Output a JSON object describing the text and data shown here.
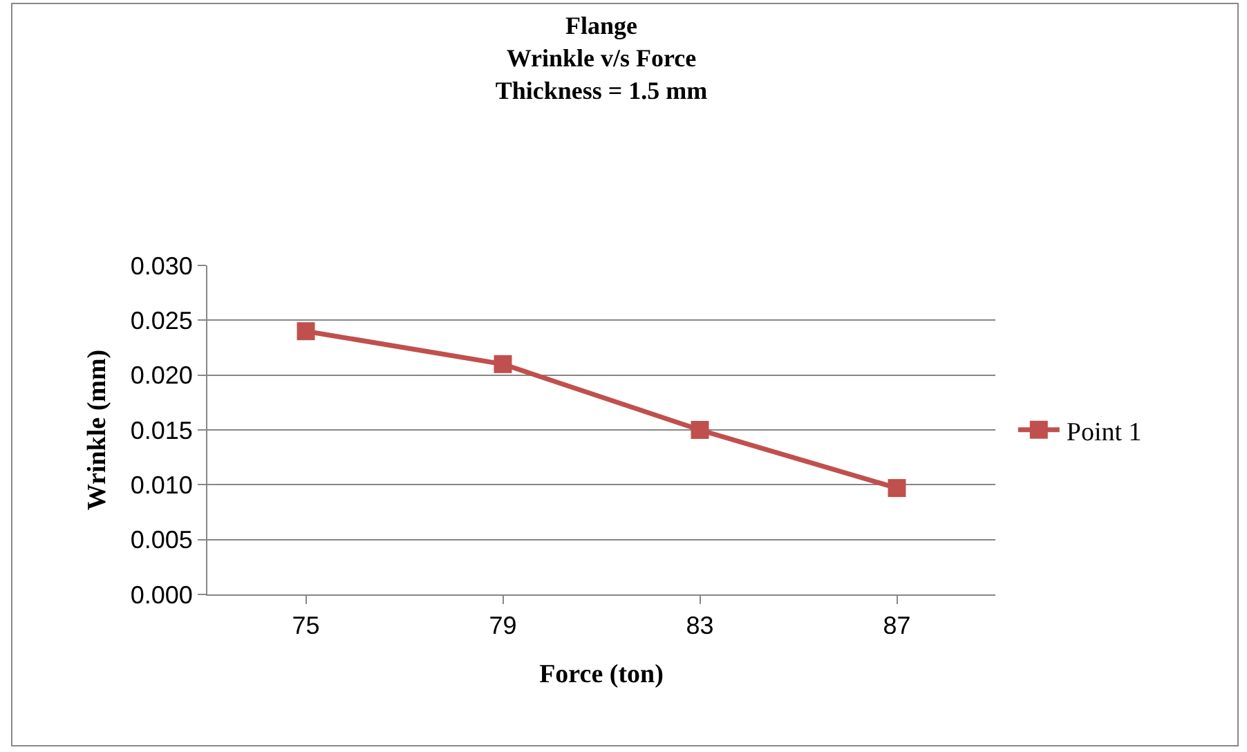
{
  "chart_data": {
    "type": "line",
    "title": "Flange\nWrinkle v/s Force\nThickness = 1.5 mm",
    "xlabel": "Force (ton)",
    "ylabel": "Wrinkle (mm)",
    "categories": [
      "75",
      "79",
      "83",
      "87"
    ],
    "series": [
      {
        "name": "Point 1",
        "color": "#c0504d",
        "values": [
          0.024,
          0.021,
          0.015,
          0.0097
        ]
      }
    ],
    "ylim": [
      0,
      0.03
    ],
    "yticks": [
      {
        "value": 0,
        "label": "0.000"
      },
      {
        "value": 0.005,
        "label": "0.005"
      },
      {
        "value": 0.01,
        "label": "0.010"
      },
      {
        "value": 0.015,
        "label": "0.015"
      },
      {
        "value": 0.02,
        "label": "0.020"
      },
      {
        "value": 0.025,
        "label": "0.025"
      },
      {
        "value": 0.03,
        "label": "0.030"
      }
    ],
    "grid": "y",
    "legend": "right",
    "marker": "square",
    "line_style": "solid"
  }
}
